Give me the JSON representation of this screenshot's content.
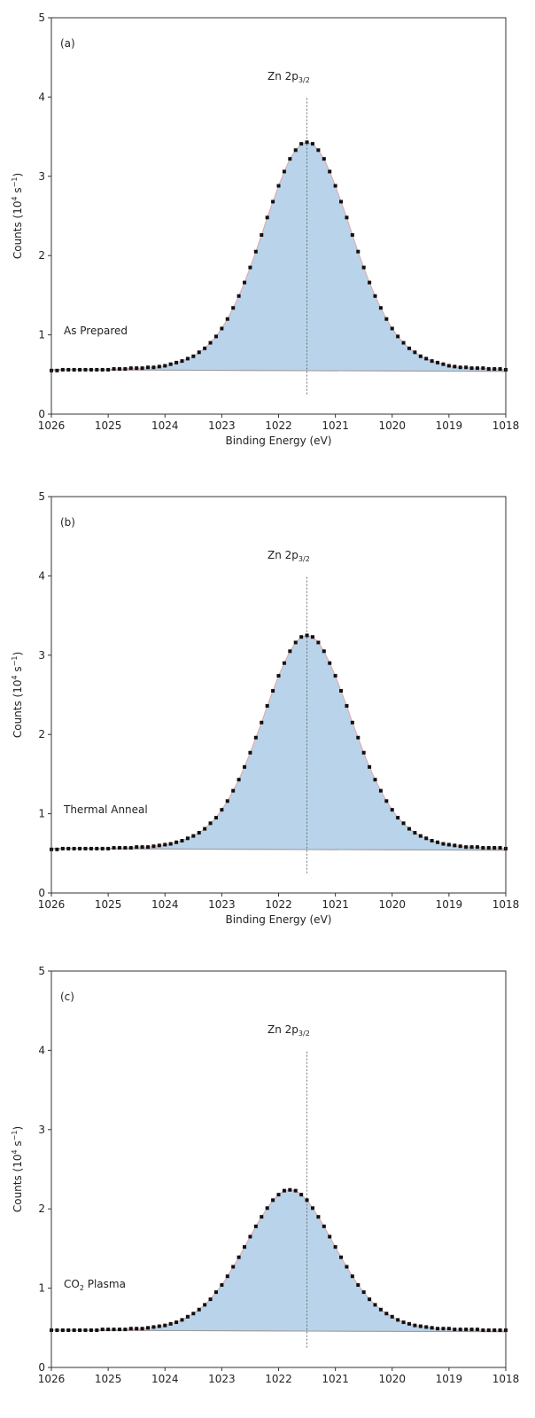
{
  "chart_data": [
    {
      "type": "scatter",
      "panel_label": "(a)",
      "annotation": [
        "As Prepared"
      ],
      "peak_label": [
        "Zn 2p",
        "3/2"
      ],
      "ylabel": [
        "Counts (10",
        "4",
        " s",
        "−1",
        ")"
      ],
      "xlabel": "Binding Energy (eV)",
      "x": [
        1026,
        1025.9,
        1025.8,
        1025.7,
        1025.6,
        1025.5,
        1025.4,
        1025.3,
        1025.2,
        1025.1,
        1025,
        1024.9,
        1024.8,
        1024.7,
        1024.6,
        1024.5,
        1024.4,
        1024.3,
        1024.2,
        1024.1,
        1024,
        1023.9,
        1023.8,
        1023.7,
        1023.6,
        1023.5,
        1023.4,
        1023.3,
        1023.2,
        1023.1,
        1023,
        1022.9,
        1022.8,
        1022.7,
        1022.6,
        1022.5,
        1022.4,
        1022.3,
        1022.2,
        1022.1,
        1022,
        1021.9,
        1021.8,
        1021.7,
        1021.6,
        1021.5,
        1021.4,
        1021.3,
        1021.2,
        1021.1,
        1021,
        1020.9,
        1020.8,
        1020.7,
        1020.6,
        1020.5,
        1020.4,
        1020.3,
        1020.2,
        1020.1,
        1020,
        1019.9,
        1019.8,
        1019.7,
        1019.6,
        1019.5,
        1019.4,
        1019.3,
        1019.2,
        1019.1,
        1019,
        1018.9,
        1018.8,
        1018.7,
        1018.6,
        1018.5,
        1018.4,
        1018.3,
        1018.2,
        1018.1,
        1018
      ],
      "values": [
        0.55,
        0.55,
        0.56,
        0.56,
        0.56,
        0.56,
        0.56,
        0.56,
        0.56,
        0.56,
        0.56,
        0.57,
        0.57,
        0.57,
        0.58,
        0.58,
        0.58,
        0.59,
        0.59,
        0.6,
        0.61,
        0.63,
        0.65,
        0.67,
        0.7,
        0.73,
        0.78,
        0.83,
        0.9,
        0.98,
        1.08,
        1.2,
        1.34,
        1.49,
        1.66,
        1.85,
        2.05,
        2.26,
        2.48,
        2.68,
        2.88,
        3.06,
        3.22,
        3.33,
        3.41,
        3.43,
        3.41,
        3.33,
        3.22,
        3.06,
        2.88,
        2.68,
        2.48,
        2.26,
        2.05,
        1.85,
        1.66,
        1.49,
        1.34,
        1.2,
        1.08,
        0.98,
        0.9,
        0.83,
        0.78,
        0.73,
        0.7,
        0.67,
        0.65,
        0.63,
        0.61,
        0.6,
        0.59,
        0.59,
        0.58,
        0.58,
        0.58,
        0.57,
        0.57,
        0.57,
        0.56
      ],
      "color": "#111111",
      "fill": "#b9d4ea",
      "fit_color": "#e3a3a3",
      "baseline": {
        "x": [
          1026,
          1018
        ],
        "values": [
          0.56,
          0.54
        ]
      },
      "marker_line": {
        "x": 1021.5,
        "y": [
          0.25,
          4.0
        ]
      },
      "xlim": [
        1026,
        1018
      ],
      "ylim": [
        0,
        5
      ],
      "xticks": [
        1026,
        1025,
        1024,
        1023,
        1022,
        1021,
        1020,
        1019,
        1018
      ],
      "yticks": [
        0,
        1,
        2,
        3,
        4,
        5
      ]
    },
    {
      "type": "scatter",
      "panel_label": "(b)",
      "annotation": [
        "Thermal Anneal"
      ],
      "peak_label": [
        "Zn 2p",
        "3/2"
      ],
      "ylabel": [
        "Counts (10",
        "4",
        " s",
        "−1",
        ")"
      ],
      "xlabel": "Binding Energy (eV)",
      "x": [
        1026,
        1025.9,
        1025.8,
        1025.7,
        1025.6,
        1025.5,
        1025.4,
        1025.3,
        1025.2,
        1025.1,
        1025,
        1024.9,
        1024.8,
        1024.7,
        1024.6,
        1024.5,
        1024.4,
        1024.3,
        1024.2,
        1024.1,
        1024,
        1023.9,
        1023.8,
        1023.7,
        1023.6,
        1023.5,
        1023.4,
        1023.3,
        1023.2,
        1023.1,
        1023,
        1022.9,
        1022.8,
        1022.7,
        1022.6,
        1022.5,
        1022.4,
        1022.3,
        1022.2,
        1022.1,
        1022,
        1021.9,
        1021.8,
        1021.7,
        1021.6,
        1021.5,
        1021.4,
        1021.3,
        1021.2,
        1021.1,
        1021,
        1020.9,
        1020.8,
        1020.7,
        1020.6,
        1020.5,
        1020.4,
        1020.3,
        1020.2,
        1020.1,
        1020,
        1019.9,
        1019.8,
        1019.7,
        1019.6,
        1019.5,
        1019.4,
        1019.3,
        1019.2,
        1019.1,
        1019,
        1018.9,
        1018.8,
        1018.7,
        1018.6,
        1018.5,
        1018.4,
        1018.3,
        1018.2,
        1018.1,
        1018
      ],
      "values": [
        0.55,
        0.55,
        0.56,
        0.56,
        0.56,
        0.56,
        0.56,
        0.56,
        0.56,
        0.56,
        0.56,
        0.57,
        0.57,
        0.57,
        0.57,
        0.58,
        0.58,
        0.58,
        0.59,
        0.6,
        0.61,
        0.62,
        0.64,
        0.66,
        0.69,
        0.72,
        0.76,
        0.81,
        0.88,
        0.95,
        1.05,
        1.16,
        1.29,
        1.43,
        1.59,
        1.77,
        1.96,
        2.15,
        2.36,
        2.55,
        2.74,
        2.9,
        3.05,
        3.16,
        3.23,
        3.25,
        3.23,
        3.16,
        3.05,
        2.9,
        2.74,
        2.55,
        2.36,
        2.15,
        1.96,
        1.77,
        1.59,
        1.43,
        1.29,
        1.16,
        1.05,
        0.95,
        0.88,
        0.81,
        0.76,
        0.72,
        0.69,
        0.66,
        0.64,
        0.62,
        0.61,
        0.6,
        0.59,
        0.58,
        0.58,
        0.58,
        0.57,
        0.57,
        0.57,
        0.57,
        0.56
      ],
      "color": "#111111",
      "fill": "#b9d4ea",
      "fit_color": "#e3a3a3",
      "baseline": {
        "x": [
          1026,
          1018
        ],
        "values": [
          0.56,
          0.54
        ]
      },
      "marker_line": {
        "x": 1021.5,
        "y": [
          0.25,
          4.0
        ]
      },
      "xlim": [
        1026,
        1018
      ],
      "ylim": [
        0,
        5
      ],
      "xticks": [
        1026,
        1025,
        1024,
        1023,
        1022,
        1021,
        1020,
        1019,
        1018
      ],
      "yticks": [
        0,
        1,
        2,
        3,
        4,
        5
      ]
    },
    {
      "type": "scatter",
      "panel_label": "(c)",
      "annotation": [
        "CO",
        "2",
        " Plasma"
      ],
      "peak_label": [
        "Zn 2p",
        "3/2"
      ],
      "ylabel": [
        "Counts (10",
        "4",
        " s",
        "−1",
        ")"
      ],
      "x": [
        1026,
        1025.9,
        1025.8,
        1025.7,
        1025.6,
        1025.5,
        1025.4,
        1025.3,
        1025.2,
        1025.1,
        1025,
        1024.9,
        1024.8,
        1024.7,
        1024.6,
        1024.5,
        1024.4,
        1024.3,
        1024.2,
        1024.1,
        1024,
        1023.9,
        1023.8,
        1023.7,
        1023.6,
        1023.5,
        1023.4,
        1023.3,
        1023.2,
        1023.1,
        1023,
        1022.9,
        1022.8,
        1022.7,
        1022.6,
        1022.5,
        1022.4,
        1022.3,
        1022.2,
        1022.1,
        1022,
        1021.9,
        1021.8,
        1021.7,
        1021.6,
        1021.5,
        1021.4,
        1021.3,
        1021.2,
        1021.1,
        1021,
        1020.9,
        1020.8,
        1020.7,
        1020.6,
        1020.5,
        1020.4,
        1020.3,
        1020.2,
        1020.1,
        1020,
        1019.9,
        1019.8,
        1019.7,
        1019.6,
        1019.5,
        1019.4,
        1019.3,
        1019.2,
        1019.1,
        1019,
        1018.9,
        1018.8,
        1018.7,
        1018.6,
        1018.5,
        1018.4,
        1018.3,
        1018.2,
        1018.1,
        1018
      ],
      "values": [
        0.47,
        0.47,
        0.47,
        0.47,
        0.47,
        0.47,
        0.47,
        0.47,
        0.47,
        0.48,
        0.48,
        0.48,
        0.48,
        0.48,
        0.49,
        0.49,
        0.49,
        0.5,
        0.51,
        0.52,
        0.53,
        0.55,
        0.57,
        0.6,
        0.64,
        0.68,
        0.73,
        0.79,
        0.86,
        0.95,
        1.04,
        1.15,
        1.27,
        1.39,
        1.52,
        1.65,
        1.78,
        1.9,
        2.01,
        2.11,
        2.18,
        2.23,
        2.24,
        2.23,
        2.18,
        2.11,
        2.01,
        1.9,
        1.78,
        1.65,
        1.52,
        1.39,
        1.27,
        1.15,
        1.04,
        0.95,
        0.86,
        0.79,
        0.73,
        0.68,
        0.64,
        0.6,
        0.57,
        0.55,
        0.53,
        0.52,
        0.51,
        0.5,
        0.49,
        0.49,
        0.49,
        0.48,
        0.48,
        0.48,
        0.48,
        0.48,
        0.47,
        0.47,
        0.47,
        0.47,
        0.47
      ],
      "color": "#111111",
      "fill": "#b9d4ea",
      "fit_color": "#e3a3a3",
      "baseline": {
        "x": [
          1026,
          1018
        ],
        "values": [
          0.47,
          0.45
        ]
      },
      "marker_line": {
        "x": 1021.5,
        "y": [
          0.25,
          4.0
        ]
      },
      "xlim": [
        1026,
        1018
      ],
      "ylim": [
        0,
        5
      ],
      "xticks": [
        1026,
        1025,
        1024,
        1023,
        1022,
        1021,
        1020,
        1019,
        1018
      ],
      "yticks": [
        0,
        1,
        2,
        3,
        4,
        5
      ]
    }
  ]
}
